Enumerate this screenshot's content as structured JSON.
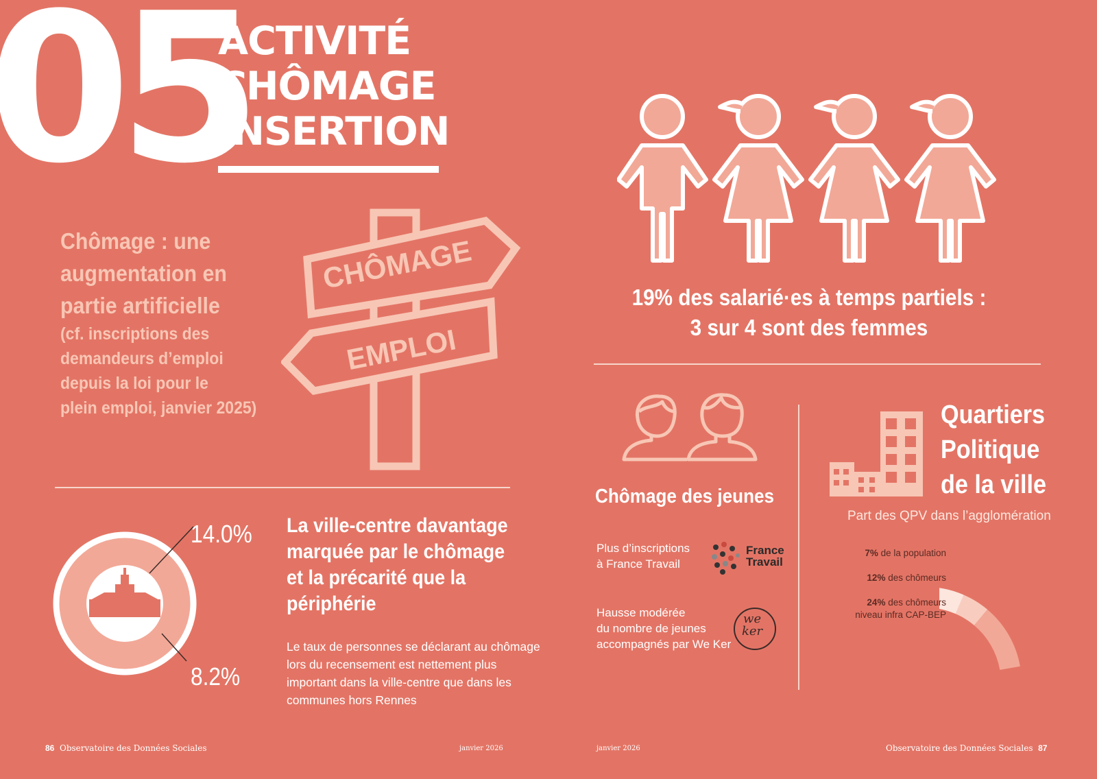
{
  "header": {
    "number": "05",
    "title_lines": [
      "ACTIVITÉ",
      "CHÔMAGE",
      "INSERTION"
    ]
  },
  "chomage_block": {
    "heading_lines": [
      "Chômage : une",
      "augmentation en",
      "partie artificielle"
    ],
    "note_lines": [
      "(cf. inscriptions des",
      "demandeurs d’emploi",
      "depuis la loi pour le",
      "plein emploi, janvier 2025)"
    ]
  },
  "signpost": {
    "top_sign": "CHÔMAGE",
    "bottom_sign": "EMPLOI",
    "icon": "signpost-icon"
  },
  "donut": {
    "outer_value": "14.0%",
    "inner_value": "8.2%",
    "icon": "city-hall-icon"
  },
  "ville_centre": {
    "heading_lines": [
      "La ville-centre davantage",
      "marquée par le chômage",
      "et la précarité que la",
      "périphérie"
    ],
    "body_lines": [
      "Le taux de personnes se déclarant au chômage",
      "lors du recensement est nettement plus",
      "important dans la ville-centre que dans les",
      "communes hors Rennes"
    ]
  },
  "temps_partiel": {
    "icon": "people-icon",
    "caption_lines": [
      "19% des salarié·es à temps partiels :",
      "3 sur 4 sont des femmes"
    ]
  },
  "jeunes": {
    "heading": "Chômage des jeunes",
    "item1_lines": [
      "Plus d’inscriptions",
      "à France Travail"
    ],
    "france_travail_logo": [
      "France",
      "Travail"
    ],
    "item2_lines": [
      "Hausse modérée",
      "du nombre de jeunes",
      "accompagnés par We Ker"
    ],
    "weker_logo": [
      "we",
      "ker"
    ]
  },
  "qpv": {
    "heading_lines": [
      "Quartiers",
      "Politique",
      "de la ville"
    ],
    "subtitle": "Part des QPV dans l’agglomération",
    "items": [
      {
        "bold": "7%",
        "text": " de la population"
      },
      {
        "bold": "12%",
        "text": " des chômeurs"
      },
      {
        "bold": "24%",
        "text": " des chômeurs",
        "text2": "niveau infra CAP-BEP"
      }
    ]
  },
  "chart_data": {
    "type": "bar",
    "categories": [
      "de la population",
      "des chômeurs",
      "des chômeurs niveau infra CAP-BEP"
    ],
    "values": [
      7,
      12,
      24
    ],
    "colors": [
      "#fce6de",
      "#f8cdbf",
      "#f2a897"
    ]
  },
  "footer": {
    "left_page": "86",
    "left_title": "Observatoire des Données Sociales",
    "left_date": "janvier 2026",
    "right_date": "janvier 2026",
    "right_title": "Observatoire des Données Sociales",
    "right_page": "87"
  }
}
